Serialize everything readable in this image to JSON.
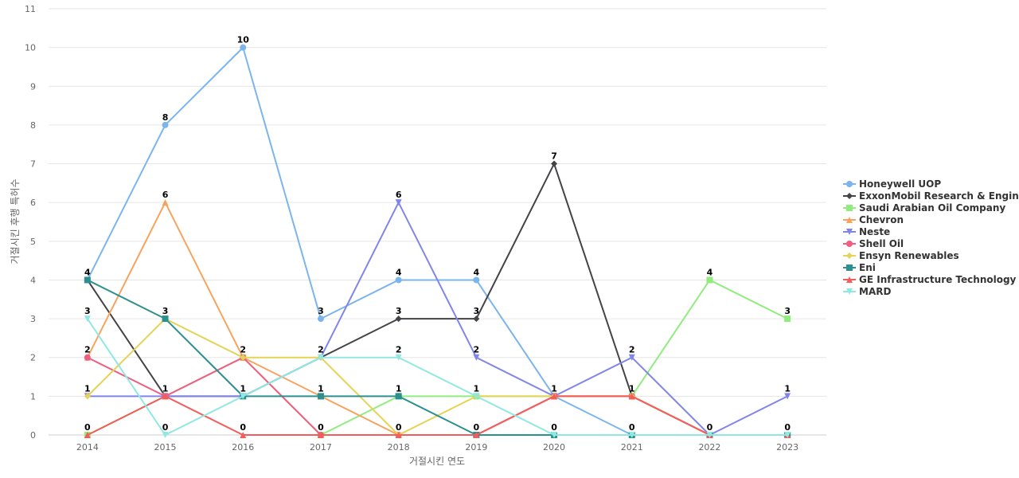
{
  "chart_data": {
    "type": "line",
    "title": "",
    "xlabel": "거절시킨 연도",
    "ylabel": "거절시킨 후행 특허수",
    "ylim": [
      0,
      11
    ],
    "yticks": [
      0,
      1,
      2,
      3,
      4,
      5,
      6,
      7,
      8,
      9,
      10,
      11
    ],
    "grid": true,
    "legend_position": "right",
    "x": [
      "2014",
      "2015",
      "2016",
      "2017",
      "2018",
      "2019",
      "2020",
      "2021",
      "2022",
      "2023"
    ],
    "series": [
      {
        "name": "Honeywell UOP",
        "color": "#7cb5ec",
        "marker": "circle",
        "values": [
          4,
          8,
          10,
          3,
          4,
          4,
          1,
          0,
          0,
          0
        ]
      },
      {
        "name": "ExxonMobil Research & Engin...",
        "color": "#434348",
        "marker": "diamond",
        "values": [
          4,
          1,
          1,
          2,
          3,
          3,
          7,
          1,
          0,
          0
        ]
      },
      {
        "name": "Saudi Arabian Oil Company",
        "color": "#90ed7d",
        "marker": "square",
        "values": [
          0,
          1,
          2,
          0,
          1,
          1,
          1,
          1,
          4,
          3
        ]
      },
      {
        "name": "Chevron",
        "color": "#f7a35c",
        "marker": "triangle",
        "values": [
          2,
          6,
          2,
          1,
          0,
          0,
          1,
          1,
          0,
          0
        ]
      },
      {
        "name": "Neste",
        "color": "#8085e9",
        "marker": "triangle-down",
        "values": [
          1,
          1,
          1,
          2,
          6,
          2,
          1,
          2,
          0,
          1
        ]
      },
      {
        "name": "Shell Oil",
        "color": "#f15c80",
        "marker": "circle",
        "values": [
          2,
          1,
          2,
          0,
          0,
          0,
          1,
          1,
          0,
          0
        ]
      },
      {
        "name": "Ensyn Renewables",
        "color": "#e4d354",
        "marker": "diamond",
        "values": [
          1,
          3,
          2,
          2,
          0,
          1,
          1,
          1,
          0,
          0
        ]
      },
      {
        "name": "Eni",
        "color": "#2b908f",
        "marker": "square",
        "values": [
          4,
          3,
          1,
          1,
          1,
          0,
          0,
          0,
          0,
          0
        ]
      },
      {
        "name": "GE Infrastructure Technology",
        "color": "#f45b5b",
        "marker": "triangle",
        "values": [
          0,
          1,
          0,
          0,
          0,
          0,
          1,
          1,
          0,
          0
        ]
      },
      {
        "name": "MARD",
        "color": "#91e8e1",
        "marker": "triangle-down",
        "values": [
          3,
          0,
          1,
          2,
          2,
          1,
          0,
          0,
          0,
          0
        ]
      }
    ],
    "data_labels": [
      {
        "x": "2014",
        "y": 4,
        "text": "4"
      },
      {
        "x": "2014",
        "y": 3,
        "text": "3"
      },
      {
        "x": "2014",
        "y": 2,
        "text": "2"
      },
      {
        "x": "2014",
        "y": 1,
        "text": "1"
      },
      {
        "x": "2014",
        "y": 0,
        "text": "0"
      },
      {
        "x": "2015",
        "y": 8,
        "text": "8"
      },
      {
        "x": "2015",
        "y": 6,
        "text": "6"
      },
      {
        "x": "2015",
        "y": 3,
        "text": "3"
      },
      {
        "x": "2015",
        "y": 1,
        "text": "1"
      },
      {
        "x": "2015",
        "y": 0,
        "text": "0"
      },
      {
        "x": "2016",
        "y": 10,
        "text": "10"
      },
      {
        "x": "2016",
        "y": 2,
        "text": "2"
      },
      {
        "x": "2016",
        "y": 1,
        "text": "1"
      },
      {
        "x": "2016",
        "y": 0,
        "text": "0"
      },
      {
        "x": "2017",
        "y": 3,
        "text": "3"
      },
      {
        "x": "2017",
        "y": 2,
        "text": "2"
      },
      {
        "x": "2017",
        "y": 1,
        "text": "1"
      },
      {
        "x": "2017",
        "y": 0,
        "text": "0"
      },
      {
        "x": "2018",
        "y": 6,
        "text": "6"
      },
      {
        "x": "2018",
        "y": 4,
        "text": "4"
      },
      {
        "x": "2018",
        "y": 3,
        "text": "3"
      },
      {
        "x": "2018",
        "y": 2,
        "text": "2"
      },
      {
        "x": "2018",
        "y": 1,
        "text": "1"
      },
      {
        "x": "2018",
        "y": 0,
        "text": "0"
      },
      {
        "x": "2019",
        "y": 4,
        "text": "4"
      },
      {
        "x": "2019",
        "y": 3,
        "text": "3"
      },
      {
        "x": "2019",
        "y": 2,
        "text": "2"
      },
      {
        "x": "2019",
        "y": 1,
        "text": "1"
      },
      {
        "x": "2019",
        "y": 0,
        "text": "0"
      },
      {
        "x": "2020",
        "y": 7,
        "text": "7"
      },
      {
        "x": "2020",
        "y": 1,
        "text": "1"
      },
      {
        "x": "2020",
        "y": 0,
        "text": "0"
      },
      {
        "x": "2021",
        "y": 2,
        "text": "2"
      },
      {
        "x": "2021",
        "y": 1,
        "text": "1"
      },
      {
        "x": "2021",
        "y": 0,
        "text": "0"
      },
      {
        "x": "2022",
        "y": 4,
        "text": "4"
      },
      {
        "x": "2022",
        "y": 0,
        "text": "0"
      },
      {
        "x": "2023",
        "y": 3,
        "text": "3"
      },
      {
        "x": "2023",
        "y": 1,
        "text": "1"
      },
      {
        "x": "2023",
        "y": 0,
        "text": "0"
      }
    ]
  }
}
